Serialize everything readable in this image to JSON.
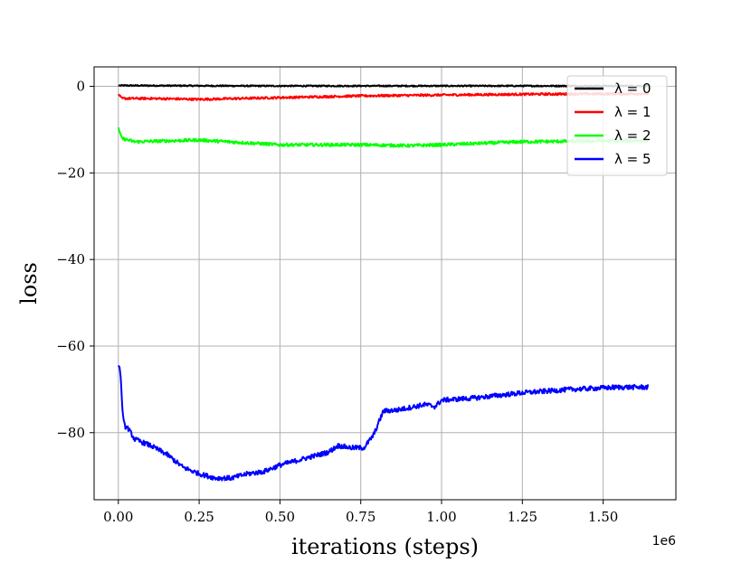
{
  "chart_data": {
    "type": "line",
    "xlabel": "iterations (steps)",
    "ylabel": "loss",
    "x_offset_label": "1e6",
    "xlim": [
      -0.075,
      1.725
    ],
    "ylim": [
      -95.5,
      4.5
    ],
    "x_ticks": [
      0.0,
      0.25,
      0.5,
      0.75,
      1.0,
      1.25,
      1.5
    ],
    "x_tick_labels": [
      "0.00",
      "0.25",
      "0.50",
      "0.75",
      "1.00",
      "1.25",
      "1.50"
    ],
    "y_ticks": [
      0,
      -20,
      -40,
      -60,
      -80
    ],
    "y_tick_labels": [
      "0",
      "−20",
      "−40",
      "−60",
      "−80"
    ],
    "grid": true,
    "legend_position": "top-right",
    "series": [
      {
        "name": "λ = 0",
        "color": "#000000",
        "noise": 0.15,
        "points": [
          [
            0.0,
            0.2
          ],
          [
            0.4,
            0.1
          ],
          [
            0.8,
            0.1
          ],
          [
            1.2,
            0.1
          ],
          [
            1.64,
            0.1
          ]
        ]
      },
      {
        "name": "λ = 1",
        "color": "#ff0000",
        "noise": 0.25,
        "points": [
          [
            0.0,
            -1.8
          ],
          [
            0.01,
            -2.8
          ],
          [
            0.1,
            -2.8
          ],
          [
            0.25,
            -3.0
          ],
          [
            0.5,
            -2.6
          ],
          [
            0.75,
            -2.2
          ],
          [
            1.0,
            -2.0
          ],
          [
            1.3,
            -1.8
          ],
          [
            1.64,
            -1.7
          ]
        ]
      },
      {
        "name": "λ = 2",
        "color": "#00ff00",
        "noise": 0.35,
        "points": [
          [
            0.0,
            -9.5
          ],
          [
            0.01,
            -12.0
          ],
          [
            0.05,
            -12.8
          ],
          [
            0.25,
            -12.4
          ],
          [
            0.5,
            -13.5
          ],
          [
            0.75,
            -13.5
          ],
          [
            0.9,
            -13.7
          ],
          [
            1.0,
            -13.5
          ],
          [
            1.25,
            -12.8
          ],
          [
            1.64,
            -12.5
          ]
        ]
      },
      {
        "name": "λ = 5",
        "color": "#0000ff",
        "noise": 0.55,
        "points": [
          [
            0.0,
            -64.5
          ],
          [
            0.005,
            -65.0
          ],
          [
            0.015,
            -77.0
          ],
          [
            0.02,
            -78.5
          ],
          [
            0.03,
            -79.0
          ],
          [
            0.05,
            -81.5
          ],
          [
            0.1,
            -83.0
          ],
          [
            0.15,
            -85.0
          ],
          [
            0.2,
            -88.0
          ],
          [
            0.25,
            -89.5
          ],
          [
            0.3,
            -90.5
          ],
          [
            0.35,
            -90.5
          ],
          [
            0.4,
            -89.5
          ],
          [
            0.45,
            -89.0
          ],
          [
            0.5,
            -87.5
          ],
          [
            0.55,
            -86.5
          ],
          [
            0.6,
            -85.5
          ],
          [
            0.65,
            -84.5
          ],
          [
            0.68,
            -83.0
          ],
          [
            0.72,
            -83.5
          ],
          [
            0.76,
            -83.5
          ],
          [
            0.79,
            -80.5
          ],
          [
            0.82,
            -75.0
          ],
          [
            0.86,
            -74.8
          ],
          [
            0.95,
            -73.5
          ],
          [
            0.98,
            -74.0
          ],
          [
            1.0,
            -72.5
          ],
          [
            1.1,
            -72.0
          ],
          [
            1.25,
            -70.8
          ],
          [
            1.4,
            -70.0
          ],
          [
            1.55,
            -69.5
          ],
          [
            1.64,
            -69.5
          ]
        ]
      }
    ]
  }
}
